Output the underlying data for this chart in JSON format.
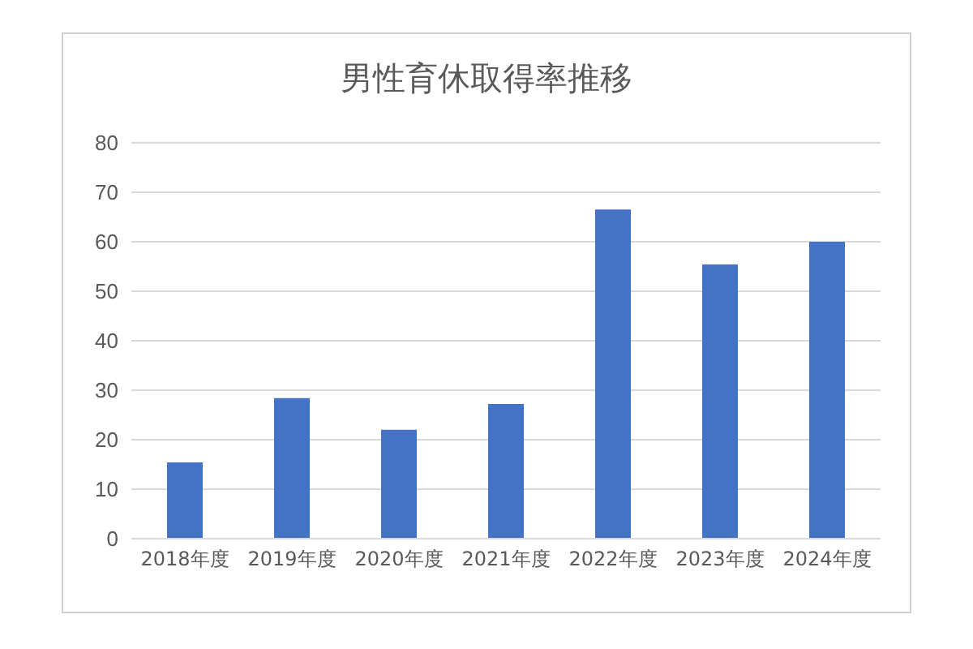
{
  "chart_data": {
    "type": "bar",
    "title": "男性育休取得率推移",
    "categories": [
      "2018年度",
      "2019年度",
      "2020年度",
      "2021年度",
      "2022年度",
      "2023年度",
      "2024年度"
    ],
    "values": [
      15.4,
      28.4,
      22,
      27.2,
      66.5,
      55.4,
      60
    ],
    "color": "#4472c4",
    "ylim": [
      0,
      80
    ],
    "yticks": [
      0,
      10,
      20,
      30,
      40,
      50,
      60,
      70,
      80
    ],
    "grid": "y",
    "legend": false
  }
}
